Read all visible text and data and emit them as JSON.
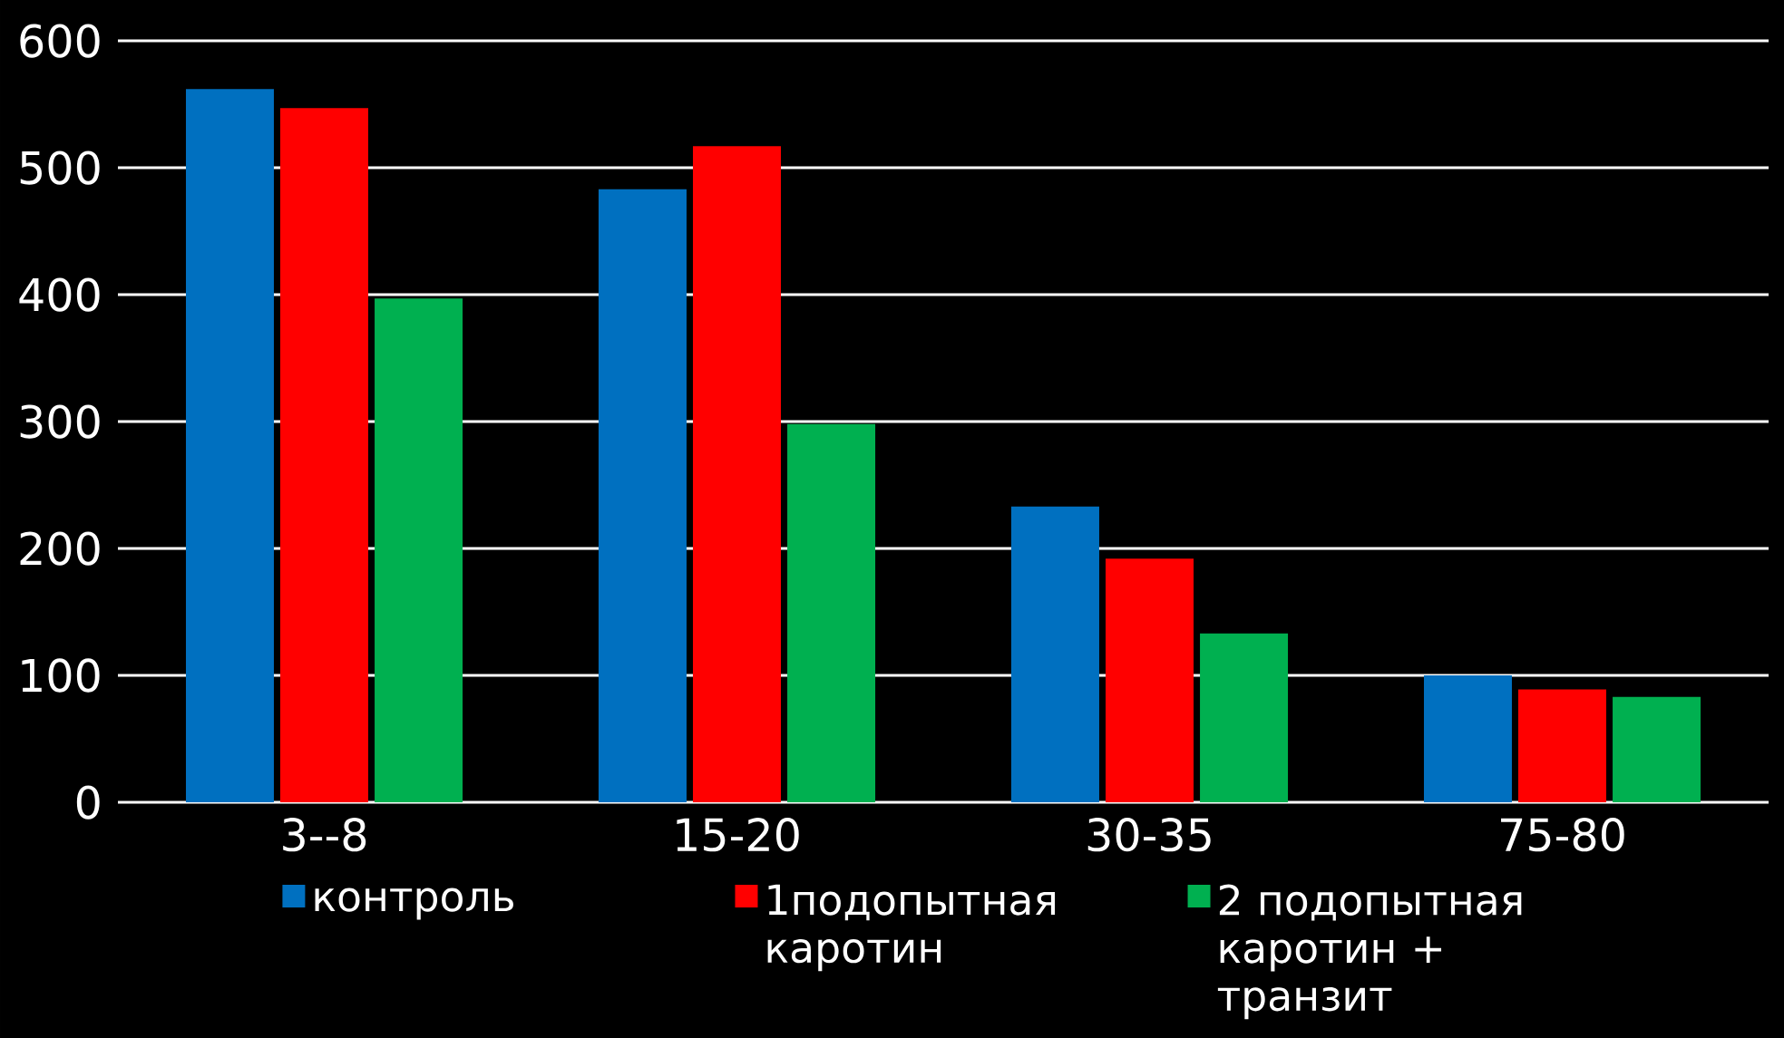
{
  "chart_data": {
    "type": "bar",
    "categories": [
      "3--8",
      "15-20",
      "30-35",
      "75-80"
    ],
    "series": [
      {
        "name": "контроль",
        "color": "#0070c0",
        "values": [
          562,
          483,
          233,
          100
        ]
      },
      {
        "name": "1подопытная каротин",
        "color": "#ff0000",
        "values": [
          547,
          517,
          192,
          89
        ]
      },
      {
        "name": "2 подопытная каротин + транзит",
        "color": "#00b050",
        "values": [
          397,
          298,
          133,
          83
        ]
      }
    ],
    "ylim": [
      0,
      600
    ],
    "yticks": [
      0,
      100,
      200,
      300,
      400,
      500,
      600
    ],
    "grid": "y",
    "legend": "bottom"
  }
}
